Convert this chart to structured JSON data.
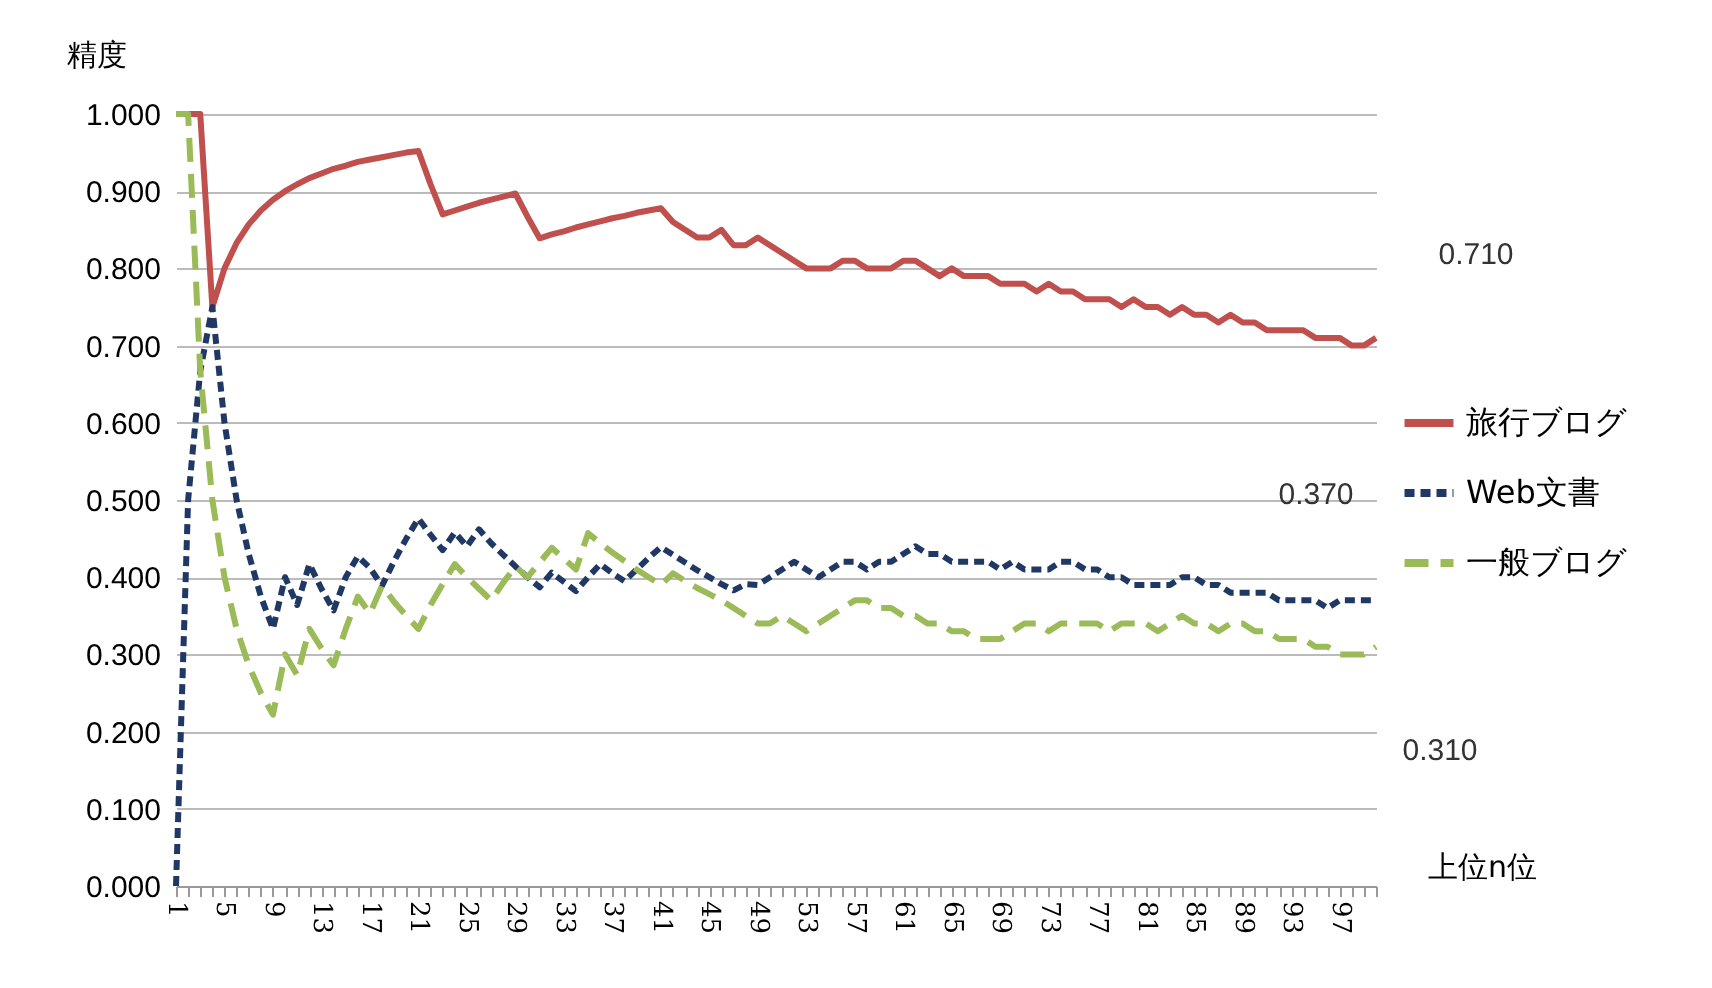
{
  "chart_data": {
    "type": "line",
    "ylabel": "精度",
    "xlabel": "上位n位",
    "categories": [
      "1",
      null,
      null,
      null,
      "5",
      null,
      null,
      null,
      "9",
      null,
      null,
      null,
      "13",
      null,
      null,
      null,
      "17",
      null,
      null,
      null,
      "21",
      null,
      null,
      null,
      "25",
      null,
      null,
      null,
      "29",
      null,
      null,
      null,
      "33",
      null,
      null,
      null,
      "37",
      null,
      null,
      null,
      "41",
      null,
      null,
      null,
      "45",
      null,
      null,
      null,
      "49",
      null,
      null,
      null,
      "53",
      null,
      null,
      null,
      "57",
      null,
      null,
      null,
      "61",
      null,
      null,
      null,
      "65",
      null,
      null,
      null,
      "69",
      null,
      null,
      null,
      "73",
      null,
      null,
      null,
      "77",
      null,
      null,
      null,
      "81",
      null,
      null,
      null,
      "85",
      null,
      null,
      null,
      "89",
      null,
      null,
      null,
      "93",
      null,
      null,
      null,
      "97",
      null,
      null,
      null
    ],
    "series": [
      {
        "name": "旅行ブログ",
        "color": "#c0504d",
        "line_style": "solid",
        "values": [
          1.0,
          1.0,
          1.0,
          0.75,
          0.8,
          0.833,
          0.857,
          0.875,
          0.889,
          0.9,
          0.909,
          0.917,
          0.923,
          0.929,
          0.933,
          0.938,
          0.941,
          0.944,
          0.947,
          0.95,
          0.952,
          0.909,
          0.87,
          0.875,
          0.88,
          0.885,
          0.889,
          0.893,
          0.897,
          0.867,
          0.839,
          0.844,
          0.848,
          0.853,
          0.857,
          0.861,
          0.865,
          0.868,
          0.872,
          0.875,
          0.878,
          0.86,
          0.85,
          0.84,
          0.84,
          0.85,
          0.83,
          0.83,
          0.84,
          0.83,
          0.82,
          0.81,
          0.8,
          0.8,
          0.8,
          0.81,
          0.81,
          0.8,
          0.8,
          0.8,
          0.81,
          0.81,
          0.8,
          0.79,
          0.8,
          0.79,
          0.79,
          0.79,
          0.78,
          0.78,
          0.78,
          0.77,
          0.78,
          0.77,
          0.77,
          0.76,
          0.76,
          0.76,
          0.75,
          0.76,
          0.75,
          0.75,
          0.74,
          0.75,
          0.74,
          0.74,
          0.73,
          0.74,
          0.73,
          0.73,
          0.72,
          0.72,
          0.72,
          0.72,
          0.71,
          0.71,
          0.71,
          0.7,
          0.7,
          0.71
        ]
      },
      {
        "name": "Web文書",
        "color": "#1f3864",
        "line_style": "dotted",
        "values": [
          0.0,
          0.5,
          0.667,
          0.75,
          0.6,
          0.5,
          0.43,
          0.375,
          0.333,
          0.4,
          0.364,
          0.417,
          0.385,
          0.357,
          0.4,
          0.427,
          0.412,
          0.389,
          0.421,
          0.45,
          0.476,
          0.455,
          0.435,
          0.458,
          0.44,
          0.462,
          0.444,
          0.429,
          0.414,
          0.4,
          0.387,
          0.406,
          0.394,
          0.382,
          0.4,
          0.417,
          0.405,
          0.395,
          0.41,
          0.425,
          0.439,
          0.429,
          0.419,
          0.409,
          0.4,
          0.391,
          0.383,
          0.391,
          0.39,
          0.4,
          0.41,
          0.42,
          0.41,
          0.4,
          0.41,
          0.42,
          0.42,
          0.41,
          0.42,
          0.42,
          0.43,
          0.44,
          0.43,
          0.43,
          0.42,
          0.42,
          0.42,
          0.42,
          0.41,
          0.42,
          0.41,
          0.41,
          0.41,
          0.42,
          0.42,
          0.41,
          0.41,
          0.4,
          0.4,
          0.39,
          0.39,
          0.39,
          0.39,
          0.4,
          0.4,
          0.39,
          0.39,
          0.38,
          0.38,
          0.38,
          0.38,
          0.37,
          0.37,
          0.37,
          0.37,
          0.36,
          0.37,
          0.37,
          0.37,
          0.37
        ]
      },
      {
        "name": "一般ブログ",
        "color": "#9bbb59",
        "line_style": "dashed",
        "values": [
          1.0,
          1.0,
          0.667,
          0.5,
          0.4,
          0.333,
          0.286,
          0.25,
          0.222,
          0.3,
          0.273,
          0.333,
          0.308,
          0.286,
          0.333,
          0.375,
          0.353,
          0.389,
          0.368,
          0.35,
          0.333,
          0.364,
          0.391,
          0.417,
          0.4,
          0.385,
          0.37,
          0.393,
          0.414,
          0.4,
          0.419,
          0.438,
          0.424,
          0.41,
          0.457,
          0.444,
          0.432,
          0.421,
          0.41,
          0.4,
          0.39,
          0.405,
          0.395,
          0.386,
          0.378,
          0.37,
          0.36,
          0.35,
          0.34,
          0.34,
          0.35,
          0.34,
          0.33,
          0.34,
          0.35,
          0.36,
          0.37,
          0.37,
          0.36,
          0.36,
          0.35,
          0.35,
          0.34,
          0.34,
          0.33,
          0.33,
          0.32,
          0.32,
          0.32,
          0.33,
          0.34,
          0.34,
          0.33,
          0.34,
          0.34,
          0.34,
          0.34,
          0.33,
          0.34,
          0.34,
          0.34,
          0.33,
          0.34,
          0.35,
          0.34,
          0.34,
          0.33,
          0.34,
          0.34,
          0.33,
          0.33,
          0.32,
          0.32,
          0.32,
          0.31,
          0.31,
          0.3,
          0.3,
          0.3,
          0.31
        ]
      }
    ],
    "ylim": [
      0,
      1
    ],
    "yticks": [
      {
        "value": 0,
        "label": "0.000"
      },
      {
        "value": 0.1,
        "label": "0.100"
      },
      {
        "value": 0.2,
        "label": "0.200"
      },
      {
        "value": 0.3,
        "label": "0.300"
      },
      {
        "value": 0.4,
        "label": "0.400"
      },
      {
        "value": 0.5,
        "label": "0.500"
      },
      {
        "value": 0.6,
        "label": "0.600"
      },
      {
        "value": 0.7,
        "label": "0.700"
      },
      {
        "value": 0.8,
        "label": "0.800"
      },
      {
        "value": 0.9,
        "label": "0.900"
      },
      {
        "value": 1,
        "label": "1.000"
      }
    ],
    "annotations": [
      "0.710",
      "0.370",
      "0.310"
    ],
    "grid": "y",
    "legend": "right"
  }
}
